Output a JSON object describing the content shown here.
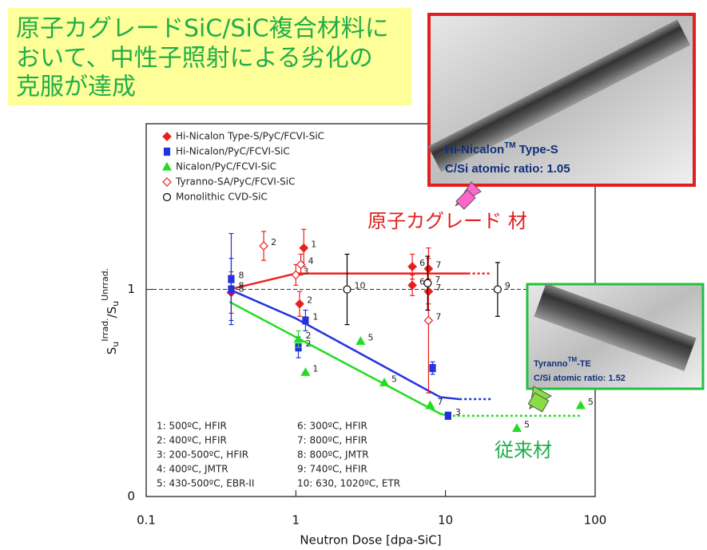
{
  "header": {
    "title_lines": [
      "原子カグレードSiC/SiC複合材料に",
      "おいて、中性子照射による劣化の",
      "克服が達成"
    ]
  },
  "chart_data": {
    "type": "scatter",
    "x_label": "Neutron Dose [dpa-SiC]",
    "y_label": {
      "main1": "S",
      "sub1": "u",
      "sup1": "Irrad.",
      "main2": "/S",
      "sub2": "u",
      "sup2": "Unrrad."
    },
    "xlim": [
      0.1,
      100
    ],
    "xticks": [
      0.1,
      1,
      10,
      100
    ],
    "x_log": true,
    "ylim": [
      0,
      1.8
    ],
    "yticks": [
      0,
      1
    ],
    "reference_line": 1,
    "series": [
      {
        "name": "Hi-Nicalon Type-S/PyC/FCVI-SiC",
        "color": "#e8201c",
        "marker": "diamond",
        "filled": true,
        "x": [
          0.37,
          1.13,
          1.06,
          6.0,
          6.0,
          7.7,
          7.7
        ],
        "values": [
          0.985,
          1.2,
          0.93,
          1.11,
          1.02,
          1.1,
          0.99
        ],
        "errors": [
          0.1,
          0.09,
          0.06,
          0.06,
          0.05,
          0.05,
          0.06
        ],
        "labels": [
          "8",
          "1",
          "2",
          "6",
          "6",
          "7",
          "7"
        ]
      },
      {
        "name": "Hi-Nicalon/PyC/FCVI-SiC",
        "color": "#2233dd",
        "marker": "square",
        "filled": true,
        "x": [
          0.37,
          0.37,
          1.16,
          1.04,
          8.2,
          10.4
        ],
        "values": [
          1.05,
          1.0,
          0.85,
          0.72,
          0.62,
          0.39
        ],
        "errors": [
          0.22,
          0.15,
          0.05,
          0.05,
          0.03,
          null
        ],
        "labels": [
          "8",
          "8",
          "1",
          "2",
          null,
          "3"
        ]
      },
      {
        "name": "Nicalon/PyC/FCVI-SiC",
        "color": "#22dd22",
        "marker": "triangle",
        "filled": true,
        "x": [
          1.16,
          1.04,
          2.71,
          3.9,
          7.9,
          30,
          80
        ],
        "values": [
          0.6,
          0.76,
          0.75,
          0.55,
          0.44,
          0.33,
          0.44
        ],
        "errors": [
          null,
          0.04,
          null,
          null,
          null,
          null,
          null
        ],
        "labels": [
          "1",
          "2",
          "5",
          "5",
          "7",
          "5",
          "5"
        ]
      },
      {
        "name": "Tyranno-SA/PyC/FCVI-SiC",
        "color": "#e8201c",
        "marker": "diamond",
        "filled": false,
        "x": [
          0.61,
          1.0,
          1.08,
          7.7
        ],
        "values": [
          1.21,
          1.07,
          1.12,
          0.85
        ],
        "errors": [
          0.07,
          0.05,
          0.05,
          0.35
        ],
        "labels": [
          "2",
          "3",
          "4",
          "7"
        ]
      },
      {
        "name": "Monolithic CVD-SiC",
        "color": "#000000",
        "marker": "circle",
        "filled": false,
        "x": [
          2.2,
          7.6,
          22.3
        ],
        "values": [
          1.0,
          1.03,
          1.0
        ],
        "errors": [
          0.17,
          0.13,
          0.13
        ],
        "labels": [
          "10",
          "7",
          "9"
        ]
      }
    ],
    "fits": [
      {
        "color": "#ee2020",
        "x": [
          0.36,
          1,
          14.1
        ],
        "values": [
          1.0,
          1.077,
          1.077
        ],
        "dotted_x": [
          14.1,
          20.3
        ],
        "dotted_values": [
          1.077,
          1.077
        ]
      },
      {
        "color": "#2233dd",
        "x": [
          0.36,
          1,
          9.2,
          12.4
        ],
        "values": [
          1.0,
          0.86,
          0.48,
          0.47
        ],
        "dotted_x": [
          12.4,
          20.3
        ],
        "dotted_values": [
          0.47,
          0.47
        ]
      },
      {
        "color": "#22dd22",
        "x": [
          0.36,
          9.2,
          10.4
        ],
        "values": [
          0.94,
          0.4,
          0.39
        ],
        "dotted_x": [
          10.4,
          82
        ],
        "dotted_values": [
          0.39,
          0.39
        ]
      }
    ],
    "notes": [
      "1: 500ºC, HFIR",
      "2: 400ºC, HFIR",
      "3: 200-500ºC, HFIR",
      "4: 400ºC, JMTR",
      "5: 430-500ºC, EBR-II",
      "6: 300ºC, HFIR",
      "7: 800ºC, HFIR",
      "8: 800ºC, JMTR",
      "9: 740ºC, HFIR",
      "10: 630, 1020ºC, ETR"
    ],
    "annotations": [
      "原子カグレード 材",
      "従来材"
    ]
  },
  "insets": [
    {
      "name": "Hi-Nicalon",
      "tm": "TM",
      "name_rest": " Type-S",
      "ratio": "C/Si atomic ratio: 1.05"
    },
    {
      "name": "Tyranno",
      "tm": "TM",
      "name_rest": "-TE",
      "ratio": "C/Si atomic ratio: 1.52"
    }
  ]
}
